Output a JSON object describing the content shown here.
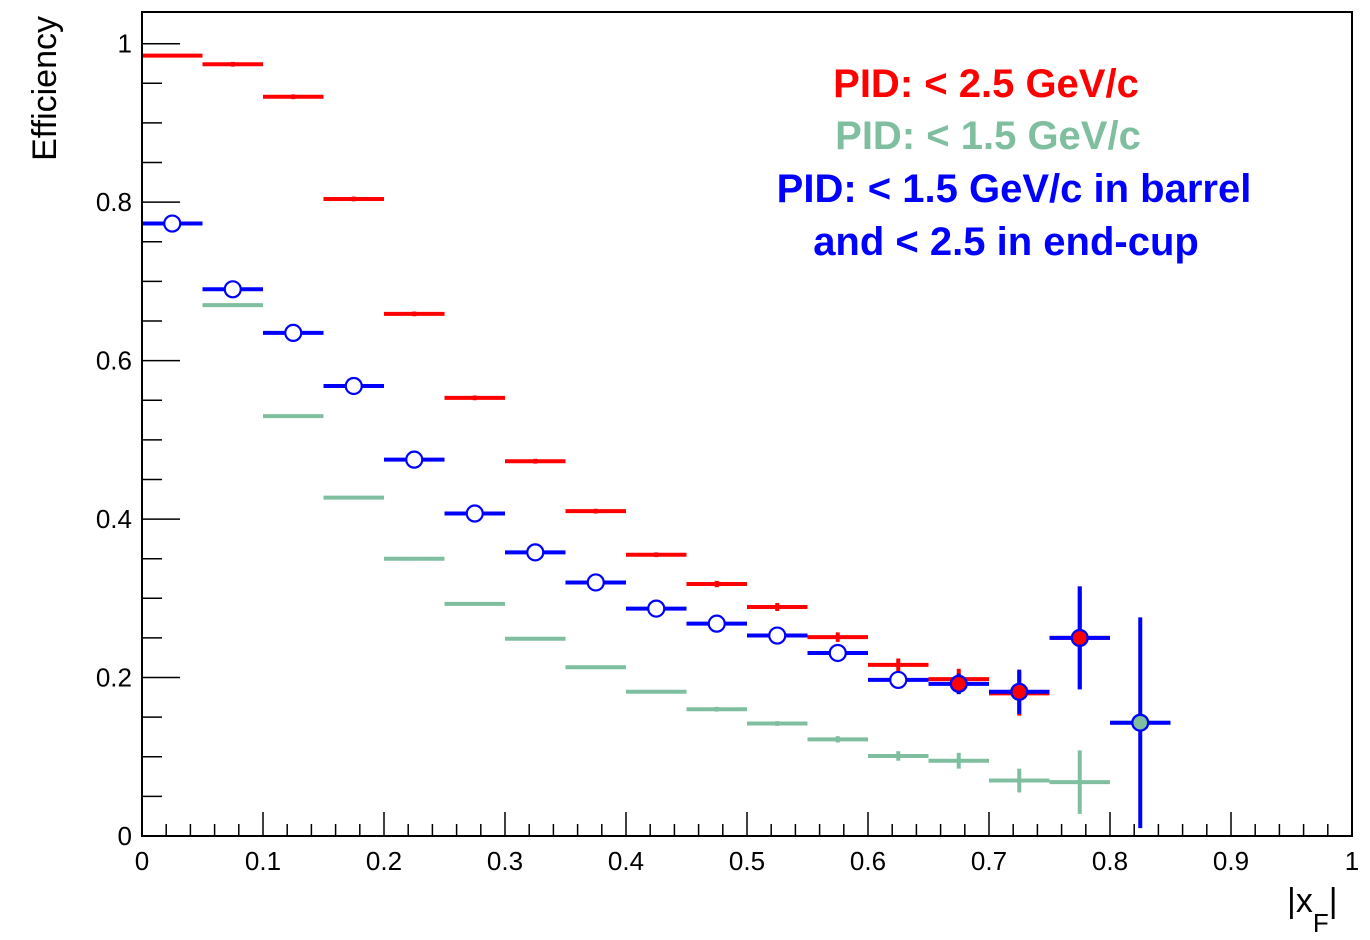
{
  "chart_data": {
    "type": "scatter",
    "title": "",
    "xlabel": "|x",
    "xlabel_subscript": "F",
    "xlabel_suffix": "|",
    "ylabel": "Efficiency",
    "xlim": [
      0,
      1
    ],
    "ylim": [
      0,
      1.04
    ],
    "grid": false,
    "legend_position": "top-right",
    "x_tick_labels": [
      {
        "value": 0,
        "label": "0"
      },
      {
        "value": 0.1,
        "label": "0.1"
      },
      {
        "value": 0.2,
        "label": "0.2"
      },
      {
        "value": 0.3,
        "label": "0.3"
      },
      {
        "value": 0.4,
        "label": "0.4"
      },
      {
        "value": 0.5,
        "label": "0.5"
      },
      {
        "value": 0.6,
        "label": "0.6"
      },
      {
        "value": 0.7,
        "label": "0.7"
      },
      {
        "value": 0.8,
        "label": "0.8"
      },
      {
        "value": 0.9,
        "label": "0.9"
      },
      {
        "value": 1,
        "label": "1"
      }
    ],
    "y_tick_labels": [
      {
        "value": 0,
        "label": "0"
      },
      {
        "value": 0.2,
        "label": "0.2"
      },
      {
        "value": 0.4,
        "label": "0.4"
      },
      {
        "value": 0.6,
        "label": "0.6"
      },
      {
        "value": 0.8,
        "label": "0.8"
      },
      {
        "value": 1,
        "label": "1"
      }
    ],
    "legend_lines": [
      {
        "text": "PID: < 2.5 GeV/c",
        "color": "#ff0000"
      },
      {
        "text": "PID: < 1.5 GeV/c",
        "color": "#7fbf9f"
      },
      {
        "text": "PID: < 1.5 GeV/c in barrel",
        "color": "#0000ff"
      },
      {
        "text": "and < 2.5 in end-cup",
        "color": "#0000ff"
      }
    ],
    "bin_half_width": 0.025,
    "series": [
      {
        "name": "PID: < 2.5 GeV/c",
        "color": "#ff0000",
        "marker": "none",
        "x": [
          0.025,
          0.075,
          0.125,
          0.175,
          0.225,
          0.275,
          0.325,
          0.375,
          0.425,
          0.475,
          0.525,
          0.575,
          0.625,
          0.675,
          0.725,
          0.775
        ],
        "y": [
          0.985,
          0.974,
          0.933,
          0.804,
          0.659,
          0.553,
          0.473,
          0.41,
          0.355,
          0.318,
          0.289,
          0.251,
          0.216,
          0.198,
          0.18,
          0.25
        ],
        "yerr": [
          0.002,
          0.003,
          0.003,
          0.003,
          0.003,
          0.003,
          0.003,
          0.003,
          0.003,
          0.004,
          0.005,
          0.006,
          0.008,
          0.013,
          0.028,
          0.065
        ]
      },
      {
        "name": "PID: < 1.5 GeV/c",
        "color": "#7fbf9f",
        "marker": "none",
        "x": [
          0.075,
          0.125,
          0.175,
          0.225,
          0.275,
          0.325,
          0.375,
          0.425,
          0.475,
          0.525,
          0.575,
          0.625,
          0.675,
          0.725,
          0.775,
          0.825
        ],
        "y": [
          0.67,
          0.53,
          0.427,
          0.35,
          0.293,
          0.249,
          0.213,
          0.182,
          0.16,
          0.142,
          0.122,
          0.101,
          0.095,
          0.07,
          0.068,
          0.143
        ],
        "yerr": [
          0.002,
          0.002,
          0.002,
          0.002,
          0.002,
          0.002,
          0.002,
          0.002,
          0.003,
          0.003,
          0.004,
          0.006,
          0.01,
          0.015,
          0.04,
          0.0
        ]
      },
      {
        "name": "PID: < 1.5 GeV/c in barrel and < 2.5 in end-cup",
        "color": "#0000ff",
        "marker": "open-circle",
        "x": [
          0.025,
          0.075,
          0.125,
          0.175,
          0.225,
          0.275,
          0.325,
          0.375,
          0.425,
          0.475,
          0.525,
          0.575,
          0.625,
          0.675,
          0.725,
          0.775,
          0.825
        ],
        "y": [
          0.773,
          0.69,
          0.635,
          0.568,
          0.475,
          0.407,
          0.358,
          0.32,
          0.287,
          0.268,
          0.253,
          0.231,
          0.197,
          0.192,
          0.182,
          0.25,
          0.143
        ],
        "yerr": [
          0.003,
          0.003,
          0.003,
          0.003,
          0.003,
          0.003,
          0.003,
          0.003,
          0.003,
          0.004,
          0.005,
          0.006,
          0.008,
          0.013,
          0.028,
          0.065,
          0.133
        ]
      }
    ],
    "filled_points": [
      {
        "x": 0.675,
        "y": 0.192,
        "fill": "#ff0000",
        "stroke": "#0000ff"
      },
      {
        "x": 0.725,
        "y": 0.182,
        "fill": "#ff0000",
        "stroke": "#0000ff"
      },
      {
        "x": 0.775,
        "y": 0.25,
        "fill": "#ff0000",
        "stroke": "#0000ff"
      },
      {
        "x": 0.825,
        "y": 0.143,
        "fill": "#7fbf9f",
        "stroke": "#0000ff"
      }
    ]
  }
}
